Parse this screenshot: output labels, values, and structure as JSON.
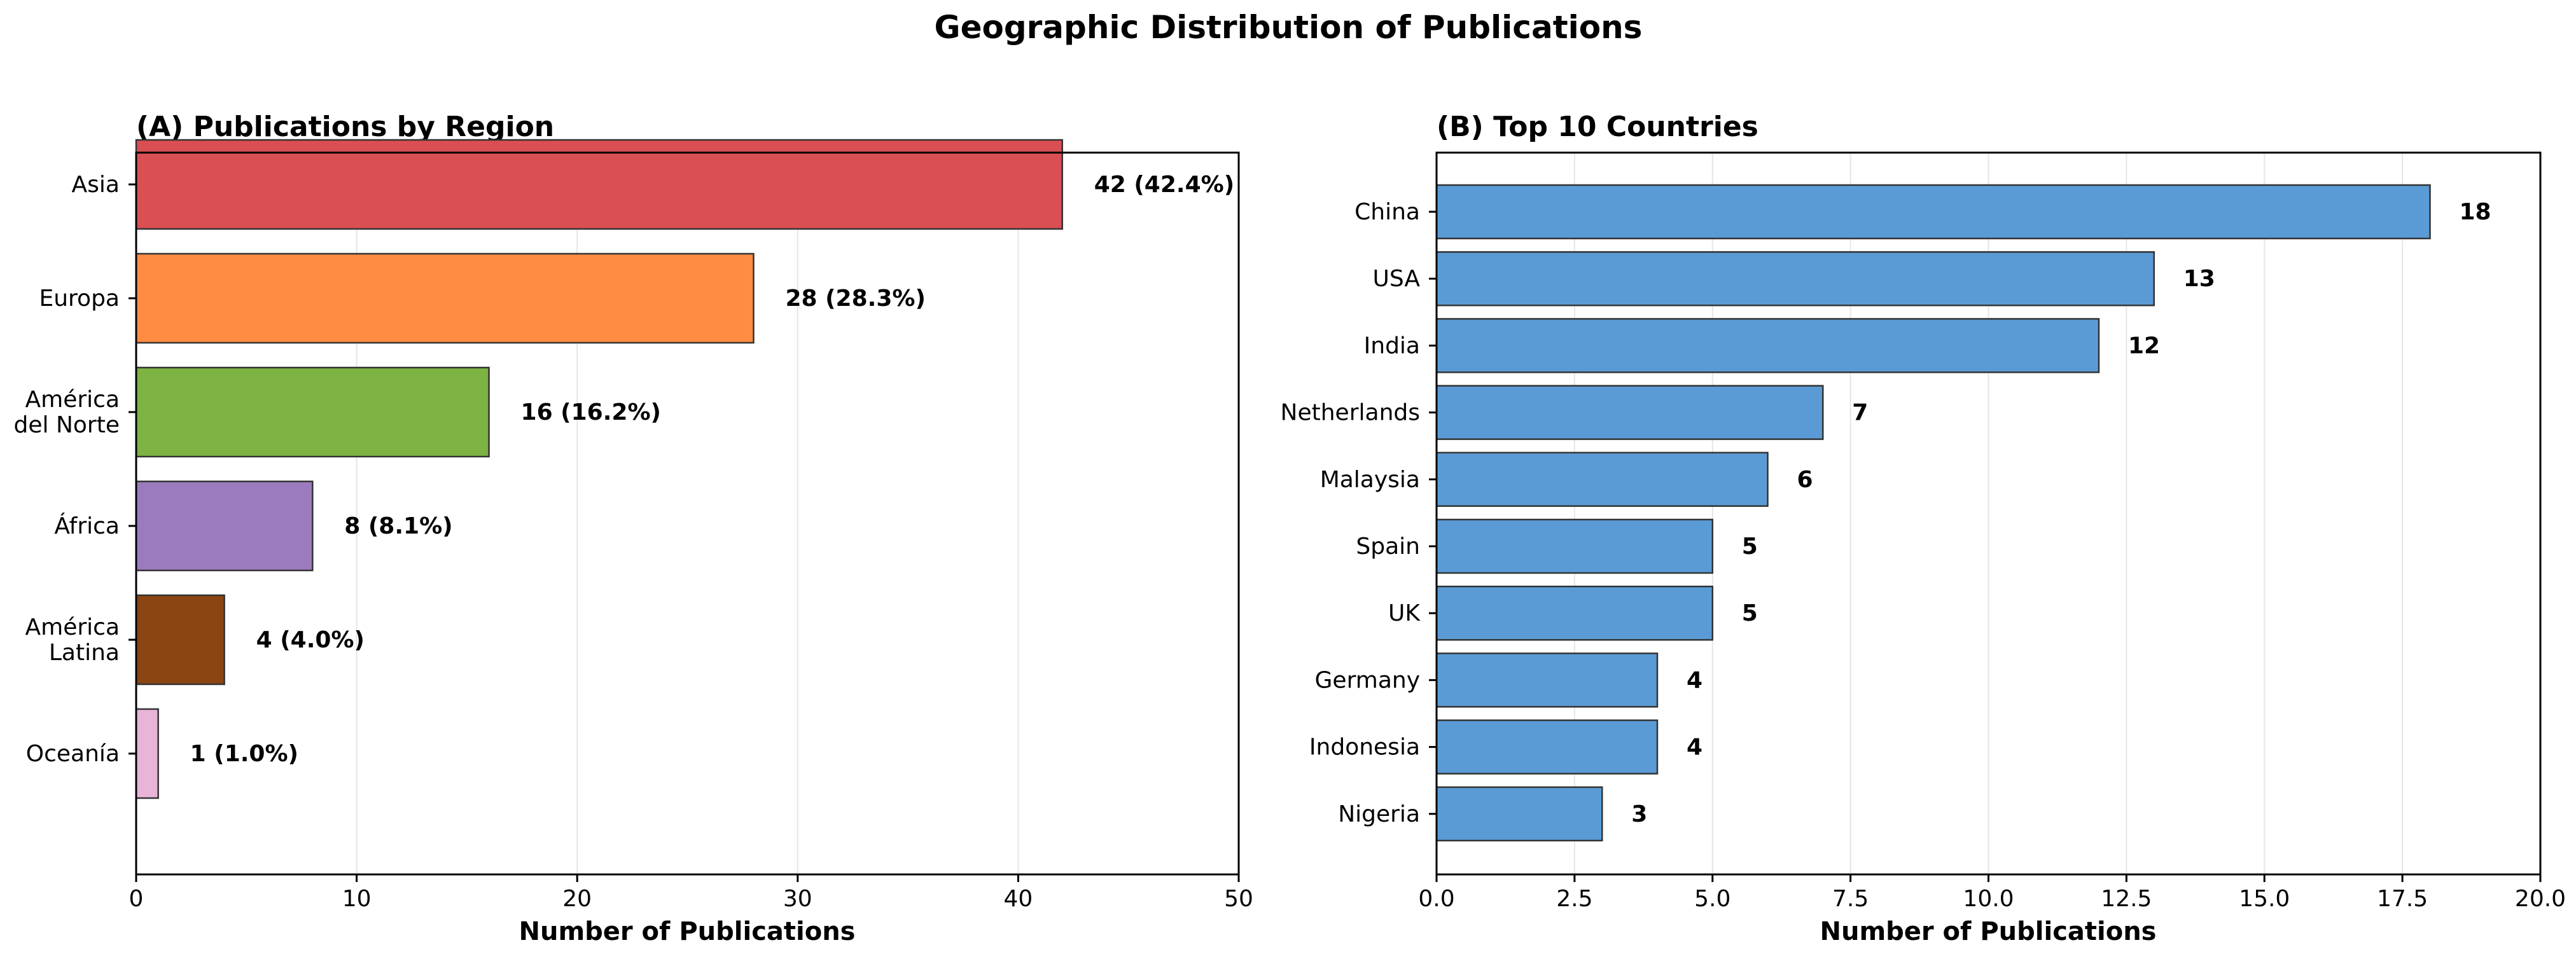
{
  "figure": {
    "title": "Geographic Distribution of Publications"
  },
  "chart_data": [
    {
      "type": "bar",
      "orientation": "horizontal",
      "title": "(A) Publications by Region",
      "xlabel": "Number of Publications",
      "ylabel": "",
      "xlim": [
        0,
        50
      ],
      "xticks": [
        0,
        10,
        20,
        30,
        40,
        50
      ],
      "xtick_labels": [
        "0",
        "10",
        "20",
        "30",
        "40",
        "50"
      ],
      "grid": "vertical",
      "categories": [
        "Asia",
        "Europa",
        "América\ndel Norte",
        "África",
        "América\nLatina",
        "Oceanía"
      ],
      "values": [
        42,
        28,
        16,
        8,
        4,
        1
      ],
      "data_labels": [
        "42 (42.4%)",
        "28 (28.3%)",
        "16 (16.2%)",
        "8 (8.1%)",
        "4 (4.0%)",
        "1 (1.0%)"
      ],
      "colors": [
        "#d94f53",
        "#ff8c42",
        "#7cb342",
        "#9b7bbd",
        "#8b4513",
        "#e8b4d8"
      ]
    },
    {
      "type": "bar",
      "orientation": "horizontal",
      "title": "(B) Top 10 Countries",
      "xlabel": "Number of Publications",
      "ylabel": "",
      "xlim": [
        0,
        20
      ],
      "xticks": [
        0,
        2.5,
        5,
        7.5,
        10,
        12.5,
        15,
        17.5,
        20
      ],
      "xtick_labels": [
        "0.0",
        "2.5",
        "5.0",
        "7.5",
        "10.0",
        "12.5",
        "15.0",
        "17.5",
        "20.0"
      ],
      "grid": "vertical",
      "categories": [
        "China",
        "USA",
        "India",
        "Netherlands",
        "Malaysia",
        "Spain",
        "UK",
        "Germany",
        "Indonesia",
        "Nigeria"
      ],
      "values": [
        18,
        13,
        12,
        7,
        6,
        5,
        5,
        4,
        4,
        3
      ],
      "data_labels": [
        "18",
        "13",
        "12",
        "7",
        "6",
        "5",
        "5",
        "4",
        "4",
        "3"
      ],
      "colors": [
        "#5b9bd5"
      ]
    }
  ]
}
